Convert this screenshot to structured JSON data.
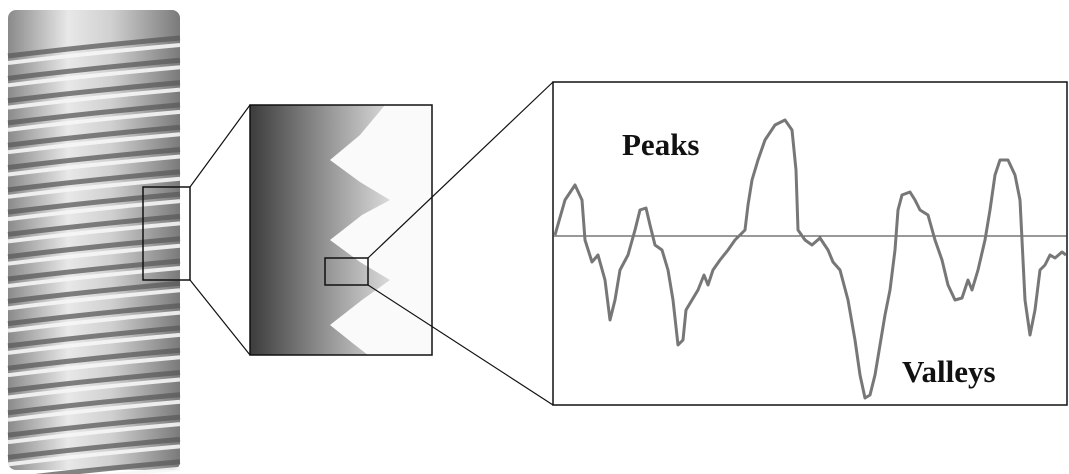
{
  "labels": {
    "peaks": "Peaks",
    "valleys": "Valleys"
  }
}
